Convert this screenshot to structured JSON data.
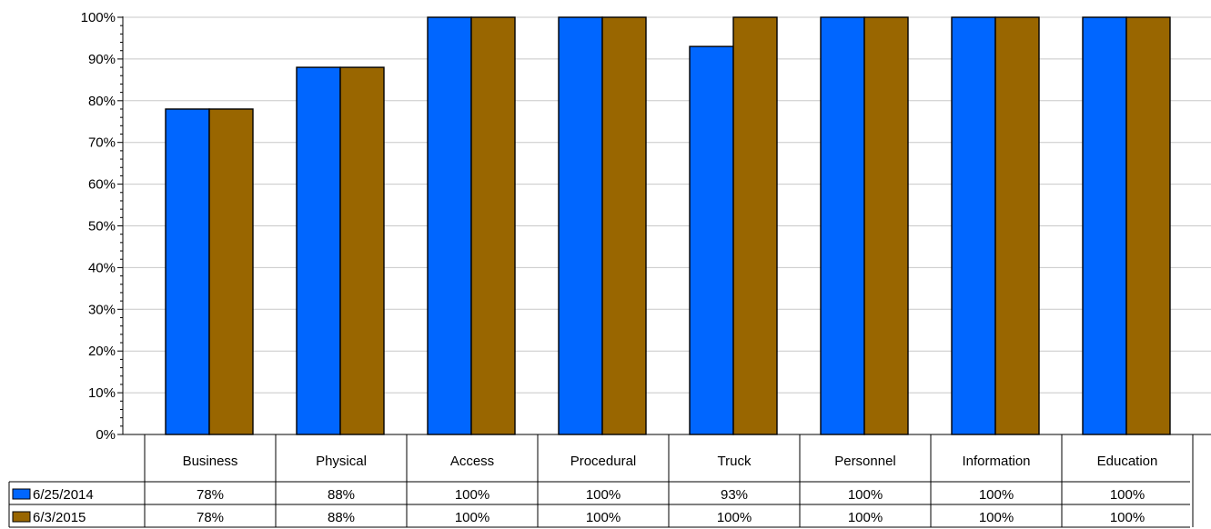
{
  "chart_data": {
    "type": "bar",
    "categories": [
      "Business",
      "Physical",
      "Access",
      "Procedural",
      "Truck",
      "Personnel",
      "Information",
      "Education"
    ],
    "series": [
      {
        "name": "6/25/2014",
        "values": [
          78,
          88,
          100,
          100,
          93,
          100,
          100,
          100
        ],
        "labels": [
          "78%",
          "88%",
          "100%",
          "100%",
          "93%",
          "100%",
          "100%",
          "100%"
        ],
        "color": "#0066ff"
      },
      {
        "name": "6/3/2015",
        "values": [
          78,
          88,
          100,
          100,
          100,
          100,
          100,
          100
        ],
        "labels": [
          "78%",
          "88%",
          "100%",
          "100%",
          "100%",
          "100%",
          "100%",
          "100%"
        ],
        "color": "#996600"
      }
    ],
    "yticks": [
      "0%",
      "10%",
      "20%",
      "30%",
      "40%",
      "50%",
      "60%",
      "70%",
      "80%",
      "90%",
      "100%"
    ],
    "ylim": [
      0,
      100
    ],
    "grid": true,
    "legend": "data-table-left"
  }
}
